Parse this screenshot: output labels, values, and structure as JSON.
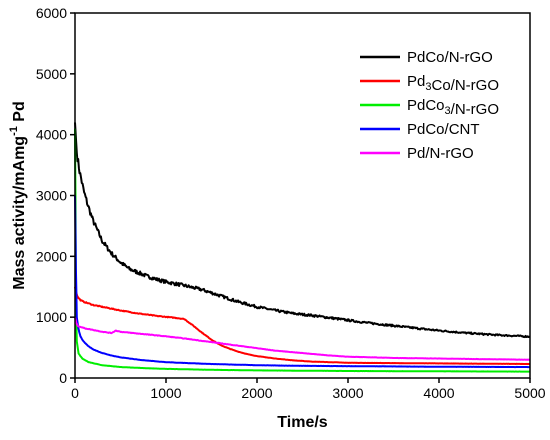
{
  "chart_data": {
    "type": "line",
    "title": "",
    "xlabel": "Time/s",
    "ylabel_main": "Mass activity/mAmg",
    "ylabel_sup": "-1",
    "ylabel_tail": " Pd",
    "xlim": [
      0,
      5000
    ],
    "ylim": [
      0,
      6000
    ],
    "xticks": [
      0,
      1000,
      2000,
      3000,
      4000,
      5000
    ],
    "yticks": [
      0,
      1000,
      2000,
      3000,
      4000,
      5000,
      6000
    ],
    "grid": false,
    "legend_position": "top-right",
    "series": [
      {
        "name": "PdCo/N-rGO",
        "label_parts": [
          {
            "t": "PdCo/N-rGO",
            "s": "n"
          }
        ],
        "color": "#000000",
        "x": [
          0,
          20,
          50,
          100,
          150,
          200,
          300,
          400,
          500,
          600,
          700,
          800,
          900,
          1000,
          1200,
          1400,
          1600,
          1800,
          2000,
          2200,
          2400,
          2600,
          2800,
          3000,
          3200,
          3500,
          3800,
          4000,
          4300,
          4600,
          5000
        ],
        "y": [
          4200,
          3700,
          3400,
          3050,
          2800,
          2580,
          2250,
          2050,
          1900,
          1790,
          1730,
          1670,
          1620,
          1580,
          1520,
          1450,
          1350,
          1250,
          1170,
          1110,
          1060,
          1030,
          990,
          950,
          910,
          860,
          810,
          780,
          740,
          710,
          680
        ]
      },
      {
        "name": "Pd3Co/N-rGO",
        "label_parts": [
          {
            "t": "Pd",
            "s": "n"
          },
          {
            "t": "3",
            "s": "sub"
          },
          {
            "t": "Co/N-rGO",
            "s": "n"
          }
        ],
        "color": "#ff0000",
        "x": [
          0,
          10,
          30,
          60,
          100,
          200,
          300,
          500,
          700,
          900,
          1100,
          1200,
          1300,
          1400,
          1500,
          1600,
          1700,
          1800,
          1900,
          2000,
          2200,
          2400,
          2600,
          2800,
          3000,
          3500,
          4000,
          4500,
          5000
        ],
        "y": [
          1500,
          1420,
          1330,
          1280,
          1250,
          1200,
          1170,
          1110,
          1060,
          1020,
          990,
          970,
          860,
          740,
          630,
          540,
          480,
          430,
          390,
          360,
          320,
          290,
          270,
          260,
          250,
          245,
          240,
          235,
          230
        ]
      },
      {
        "name": "PdCo3/N-rGO",
        "label_parts": [
          {
            "t": "PdCo",
            "s": "n"
          },
          {
            "t": "3",
            "s": "sub"
          },
          {
            "t": "/N-rGO",
            "s": "n"
          }
        ],
        "color": "#00ee00",
        "x": [
          0,
          5,
          10,
          20,
          40,
          80,
          150,
          300,
          500,
          800,
          1000,
          1500,
          2000,
          3000,
          4000,
          5000
        ],
        "y": [
          4100,
          3000,
          1200,
          600,
          400,
          320,
          260,
          210,
          180,
          160,
          150,
          135,
          125,
          115,
          110,
          105
        ]
      },
      {
        "name": "PdCo/CNT",
        "label_parts": [
          {
            "t": "PdCo/CNT",
            "s": "n"
          }
        ],
        "color": "#0000ff",
        "x": [
          0,
          10,
          20,
          40,
          60,
          100,
          150,
          200,
          300,
          400,
          500,
          700,
          1000,
          1500,
          2000,
          2500,
          3000,
          4000,
          5000
        ],
        "y": [
          3000,
          1800,
          1000,
          800,
          680,
          590,
          520,
          470,
          410,
          370,
          340,
          300,
          260,
          230,
          210,
          200,
          195,
          185,
          180
        ]
      },
      {
        "name": "Pd/N-rGO",
        "label_parts": [
          {
            "t": "Pd/N-rGO",
            "s": "n"
          }
        ],
        "color": "#ff00ff",
        "x": [
          0,
          15,
          30,
          60,
          100,
          200,
          300,
          400,
          450,
          500,
          600,
          700,
          800,
          900,
          1000,
          1200,
          1400,
          1600,
          1800,
          2000,
          2200,
          2500,
          2800,
          3000,
          3500,
          4000,
          4500,
          5000
        ],
        "y": [
          1000,
          900,
          860,
          840,
          820,
          790,
          760,
          740,
          780,
          760,
          745,
          730,
          715,
          700,
          685,
          650,
          610,
          570,
          530,
          490,
          450,
          410,
          370,
          350,
          330,
          320,
          310,
          300
        ]
      }
    ]
  }
}
